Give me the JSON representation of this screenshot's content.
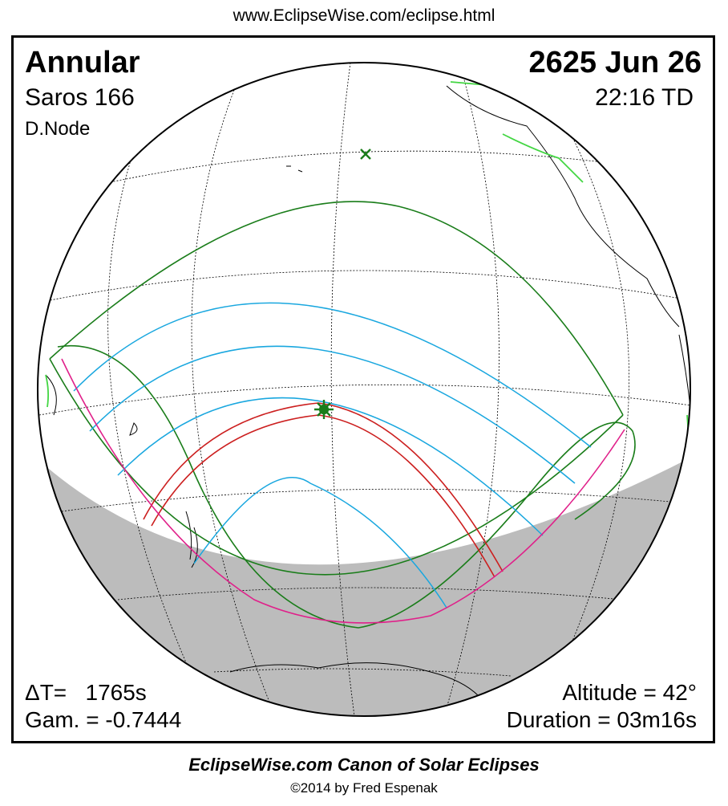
{
  "header": {
    "url": "www.EclipseWise.com/eclipse.html"
  },
  "eclipse": {
    "type": "Annular",
    "saros": "Saros 166",
    "node": "D.Node",
    "date": "2625 Jun 26",
    "time": "22:16 TD"
  },
  "stats": {
    "delta_t_label": "ΔT=",
    "delta_t_value": "1765s",
    "gamma": "Gam. = -0.7444",
    "altitude": "Altitude = 42°",
    "duration": "Duration = 03m16s"
  },
  "footer": {
    "title": "EclipseWise.com Canon of Solar Eclipses",
    "copyright": "©2014 by Fred Espenak"
  },
  "colors": {
    "penumbral_limits": "#1a7d1a",
    "partial_bands": "#19a7df",
    "central_path": "#cc1f1f",
    "rise_set_curve": "#e0208a",
    "night_shade": "#bcbcbc",
    "coastlines": "#000000",
    "highlight_coast": "#43d643",
    "markers": "#1a7d1a"
  },
  "map": {
    "projection": "orthographic",
    "markers": [
      "greatest-eclipse-star-icon",
      "sub-solar-x-icon"
    ]
  }
}
